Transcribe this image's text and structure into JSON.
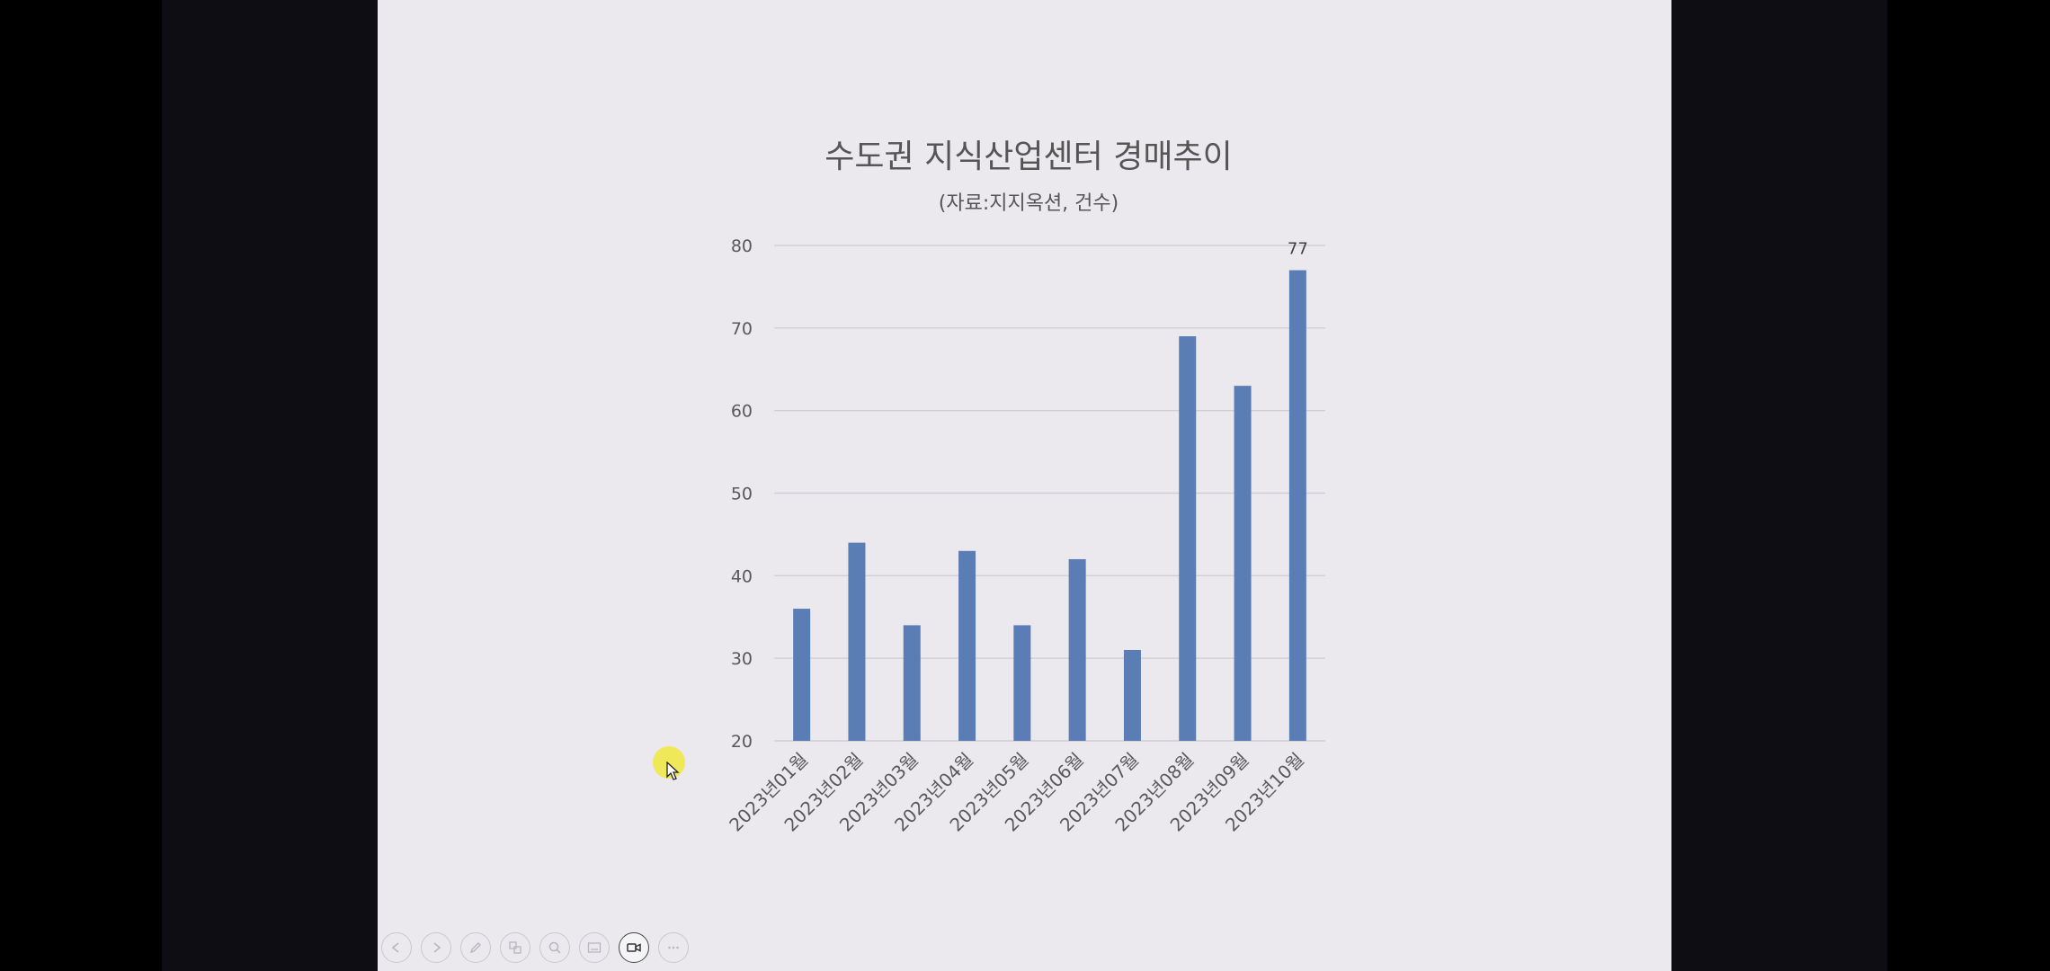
{
  "chart_data": {
    "type": "bar",
    "title": "수도권 지식산업센터 경매추이",
    "subtitle": "(자료:지지옥션, 건수)",
    "categories": [
      "2023년01월",
      "2023년02월",
      "2023년03월",
      "2023년04월",
      "2023년05월",
      "2023년06월",
      "2023년07월",
      "2023년08월",
      "2023년09월",
      "2023년10월"
    ],
    "values": [
      36,
      44,
      34,
      43,
      34,
      42,
      31,
      69,
      63,
      77
    ],
    "data_labels": {
      "9": "77"
    },
    "ylim": [
      20,
      80
    ],
    "yticks": [
      20,
      30,
      40,
      50,
      60,
      70,
      80
    ],
    "grid": true,
    "color": "#5b7db5"
  },
  "toolbar": {
    "buttons": [
      {
        "name": "previous-slide-button",
        "icon": "arrow-left-icon"
      },
      {
        "name": "next-slide-button",
        "icon": "arrow-right-icon"
      },
      {
        "name": "pen-tool-button",
        "icon": "pen-icon"
      },
      {
        "name": "slides-overview-button",
        "icon": "slides-icon"
      },
      {
        "name": "zoom-button",
        "icon": "magnifier-icon"
      },
      {
        "name": "subtitles-button",
        "icon": "subtitles-icon"
      },
      {
        "name": "camera-button",
        "icon": "video-camera-icon",
        "active": true
      },
      {
        "name": "more-options-button",
        "icon": "more-icon"
      }
    ]
  }
}
